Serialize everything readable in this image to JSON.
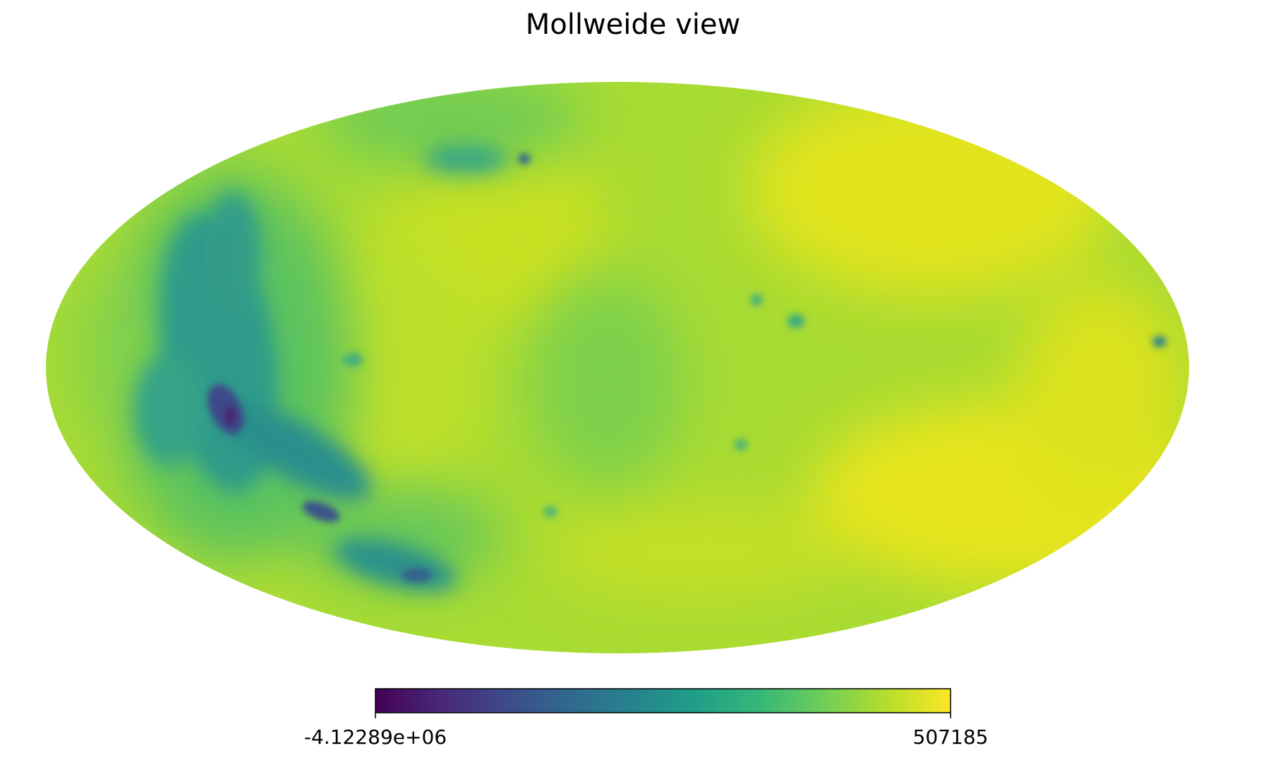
{
  "title": "Mollweide view",
  "chart_data": {
    "type": "heatmap",
    "projection": "mollweide",
    "colormap": "viridis",
    "colorbar": {
      "min": -4122890,
      "max": 507185,
      "min_label": "-4.12289e+06",
      "max_label": "507185",
      "orientation": "horizontal"
    },
    "colormap_stops": [
      "#440154",
      "#482878",
      "#3e4989",
      "#31688e",
      "#26828e",
      "#1f9e89",
      "#35b779",
      "#6ece58",
      "#b5de2b",
      "#fde725"
    ]
  }
}
